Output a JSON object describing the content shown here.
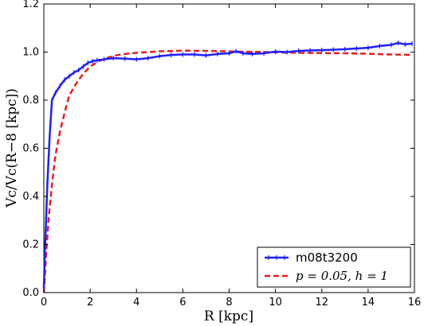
{
  "chart_data": {
    "type": "line",
    "xlabel": "R [kpc]",
    "ylabel": "Vc/Vc(R−8 [kpc])",
    "xlim": [
      0,
      16
    ],
    "ylim": [
      0.0,
      1.2
    ],
    "xticks": [
      0,
      2,
      4,
      6,
      8,
      10,
      12,
      14,
      16
    ],
    "yticks": [
      0.0,
      0.2,
      0.4,
      0.6,
      0.8,
      1.0,
      1.2
    ],
    "xtick_labels": [
      "0",
      "2",
      "4",
      "6",
      "8",
      "10",
      "12",
      "14",
      "16"
    ],
    "ytick_labels": [
      "0.0",
      "0.2",
      "0.4",
      "0.6",
      "0.8",
      "1.0",
      "1.2"
    ],
    "grid": false,
    "legend_position": "bottom-right",
    "series": [
      {
        "name": "m08t3200",
        "color": "#1f1fff",
        "style": "solid-with-markers",
        "x": [
          0.0,
          0.05,
          0.15,
          0.25,
          0.35,
          0.5,
          0.7,
          0.9,
          1.1,
          1.3,
          1.5,
          1.7,
          1.9,
          2.1,
          2.3,
          2.6,
          3.0,
          3.5,
          4.0,
          4.5,
          5.0,
          5.5,
          6.0,
          6.5,
          7.0,
          7.5,
          8.0,
          8.3,
          8.6,
          9.0,
          9.5,
          10.0,
          10.5,
          11.0,
          11.5,
          12.0,
          12.5,
          13.0,
          13.5,
          14.0,
          14.5,
          15.0,
          15.3,
          15.6,
          15.9
        ],
        "y": [
          0.02,
          0.18,
          0.45,
          0.65,
          0.8,
          0.83,
          0.86,
          0.885,
          0.9,
          0.915,
          0.925,
          0.94,
          0.955,
          0.962,
          0.966,
          0.97,
          0.975,
          0.973,
          0.97,
          0.975,
          0.983,
          0.988,
          0.99,
          0.99,
          0.986,
          0.992,
          0.995,
          1.003,
          0.995,
          0.992,
          0.995,
          1.002,
          1.0,
          1.005,
          1.007,
          1.008,
          1.01,
          1.012,
          1.015,
          1.018,
          1.025,
          1.03,
          1.038,
          1.032,
          1.035
        ]
      },
      {
        "name": "p = 0.05, h = 1",
        "color": "#ee1c1c",
        "style": "dashed",
        "x": [
          0.0,
          0.1,
          0.2,
          0.35,
          0.5,
          0.7,
          0.9,
          1.1,
          1.4,
          1.7,
          2.0,
          2.4,
          2.8,
          3.2,
          3.6,
          4.0,
          5.0,
          6.0,
          7.0,
          8.0,
          9.0,
          10.0,
          11.0,
          12.0,
          13.0,
          14.0,
          15.0,
          15.9
        ],
        "y": [
          0.0,
          0.16,
          0.3,
          0.45,
          0.57,
          0.67,
          0.75,
          0.82,
          0.87,
          0.91,
          0.94,
          0.963,
          0.978,
          0.988,
          0.993,
          0.997,
          1.003,
          1.006,
          1.005,
          1.003,
          1.001,
          0.999,
          0.997,
          0.996,
          0.995,
          0.993,
          0.99,
          0.988
        ]
      }
    ]
  }
}
